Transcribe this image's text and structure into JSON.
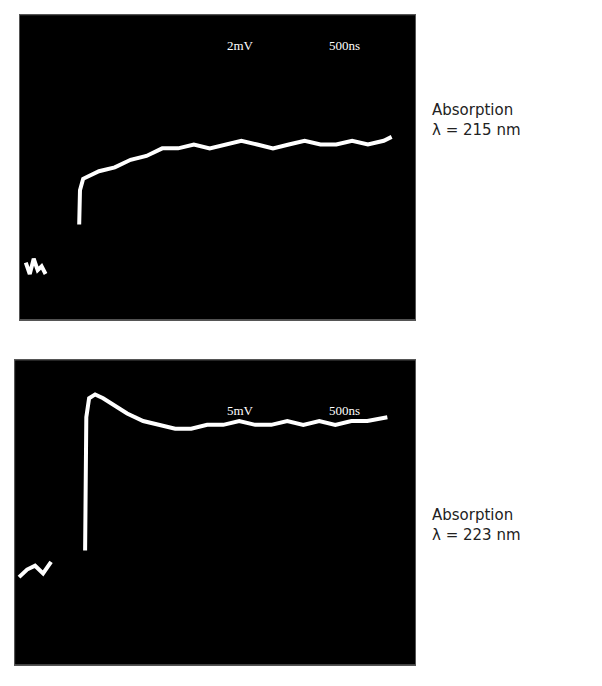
{
  "chart_data": [
    {
      "type": "line",
      "title": "Absorption\nλ = 215 nm",
      "annotations": [
        "2mV",
        "500ns"
      ],
      "color": "#ffffff",
      "tick_labels": false,
      "grid": false,
      "xlim": [
        0,
        10
      ],
      "ylim": [
        0,
        8
      ],
      "xticks": [],
      "yticks": [],
      "x": [
        0.15,
        0.25,
        0.35,
        0.45,
        0.55,
        0.65,
        1.0,
        1.5,
        1.52,
        1.6,
        1.8,
        2.0,
        2.4,
        2.8,
        3.2,
        3.6,
        4.0,
        4.4,
        4.8,
        5.2,
        5.6,
        6.0,
        6.4,
        6.8,
        7.2,
        7.6,
        8.0,
        8.4,
        8.8,
        9.2,
        9.4
      ],
      "values": [
        1.5,
        1.2,
        1.6,
        1.3,
        1.4,
        1.2,
        null,
        2.5,
        3.4,
        3.7,
        3.8,
        3.9,
        4.0,
        4.2,
        4.3,
        4.5,
        4.5,
        4.6,
        4.5,
        4.6,
        4.7,
        4.6,
        4.5,
        4.6,
        4.7,
        4.6,
        4.6,
        4.7,
        4.6,
        4.7,
        4.8
      ]
    },
    {
      "type": "line",
      "title": "Absorption\nλ = 223 nm",
      "annotations": [
        "5mV",
        "500ns"
      ],
      "color": "#ffffff",
      "tick_labels": false,
      "grid": false,
      "xlim": [
        0,
        10
      ],
      "ylim": [
        0,
        8
      ],
      "xticks": [],
      "yticks": [],
      "x": [
        0.1,
        0.3,
        0.5,
        0.7,
        0.9,
        1.3,
        1.75,
        1.78,
        1.85,
        2.0,
        2.2,
        2.5,
        2.8,
        3.2,
        3.6,
        4.0,
        4.4,
        4.8,
        5.2,
        5.6,
        6.0,
        6.4,
        6.8,
        7.2,
        7.6,
        8.0,
        8.4,
        8.8,
        9.3
      ],
      "values": [
        2.3,
        2.5,
        2.6,
        2.4,
        2.7,
        null,
        3.0,
        6.5,
        7.0,
        7.1,
        7.0,
        6.8,
        6.6,
        6.4,
        6.3,
        6.2,
        6.2,
        6.3,
        6.3,
        6.4,
        6.3,
        6.3,
        6.4,
        6.3,
        6.4,
        6.3,
        6.4,
        6.4,
        6.5
      ]
    }
  ]
}
